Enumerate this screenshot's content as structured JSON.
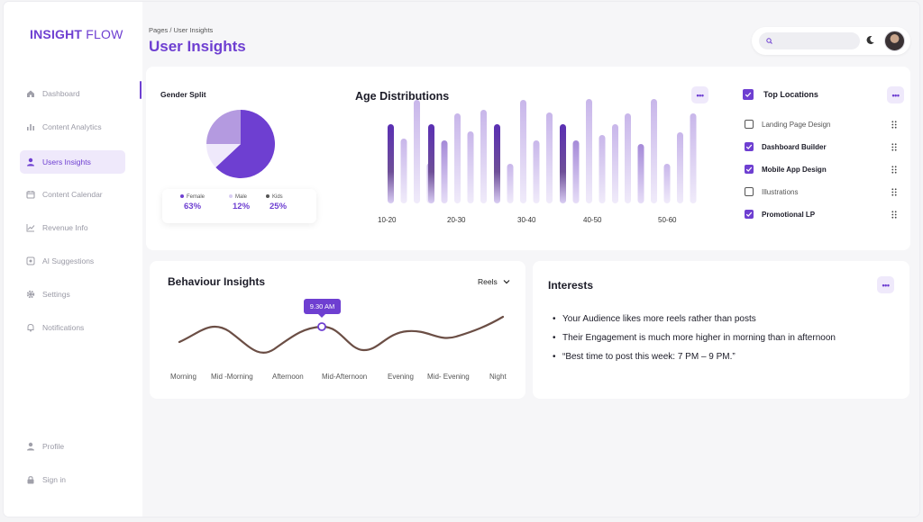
{
  "app": {
    "brand_bold": "INSIGHT",
    "brand_thin": "FLOW"
  },
  "sidebar": {
    "items": [
      {
        "label": "Dashboard",
        "icon": "home-icon"
      },
      {
        "label": "Content Analytics",
        "icon": "bar-chart-icon"
      },
      {
        "label": "Users Insights",
        "icon": "user-icon",
        "active": true
      },
      {
        "label": "Content Calendar",
        "icon": "calendar-icon"
      },
      {
        "label": "Revenue Info",
        "icon": "line-chart-icon"
      },
      {
        "label": "AI Suggestions",
        "icon": "ai-icon"
      },
      {
        "label": "Settings",
        "icon": "gear-icon"
      },
      {
        "label": "Notifications",
        "icon": "bell-icon"
      }
    ],
    "bottom": [
      {
        "label": "Profile",
        "icon": "user-icon"
      },
      {
        "label": "Sign in",
        "icon": "lock-icon"
      }
    ]
  },
  "header": {
    "breadcrumb": "Pages / User Insights",
    "title": "User Insights",
    "search_placeholder": ""
  },
  "colors": {
    "accent": "#6e3fd1",
    "accent_soft": "#efe9fb",
    "curve": "#6b4e45"
  },
  "gender": {
    "title": "Gender Split",
    "legend": [
      {
        "label": "Female",
        "pct": "63%",
        "color": "#6e3fd1"
      },
      {
        "label": "Male",
        "pct": "12%",
        "color": "#d8cdf2"
      },
      {
        "label": "Kids",
        "pct": "25%",
        "color": "#555555"
      }
    ]
  },
  "age": {
    "title": "Age Distributions",
    "labels": [
      "10-20",
      "20-30",
      "30-40",
      "40-50",
      "50-60"
    ]
  },
  "locations": {
    "title": "Top Locations",
    "items": [
      {
        "label": "Landing Page Design",
        "checked": false
      },
      {
        "label": "Dashboard Builder",
        "checked": true
      },
      {
        "label": "Mobile App Design",
        "checked": true
      },
      {
        "label": "Illustrations",
        "checked": false
      },
      {
        "label": "Promotional LP",
        "checked": true
      }
    ]
  },
  "behaviour": {
    "title": "Behaviour Insights",
    "filter": "Reels",
    "tooltip": "9.30 AM",
    "times": [
      "Morning",
      "Mid -Morning",
      "Afternoon",
      "Mid-Afternoon",
      "Evening",
      "Mid- Evening",
      "Night"
    ]
  },
  "interests": {
    "title": "Interests",
    "items": [
      "Your Audience likes more reels rather than posts",
      "Their Engagement is much more higher in morning than in afternoon",
      "“Best time to post this week: 7 PM – 9 PM.”"
    ]
  },
  "chart_data": [
    {
      "type": "pie",
      "title": "Gender Split",
      "categories": [
        "Female",
        "Male",
        "Kids"
      ],
      "values": [
        63,
        12,
        25
      ]
    },
    {
      "type": "bar",
      "title": "Age Distributions",
      "categories": [
        "10-20",
        "20-30",
        "30-40",
        "40-50",
        "50-60"
      ]
    },
    {
      "type": "line",
      "title": "Behaviour Insights",
      "categories": [
        "Morning",
        "Mid -Morning",
        "Afternoon",
        "Mid-Afternoon",
        "Evening",
        "Mid- Evening",
        "Night"
      ],
      "highlight": {
        "label": "9.30 AM"
      }
    }
  ]
}
